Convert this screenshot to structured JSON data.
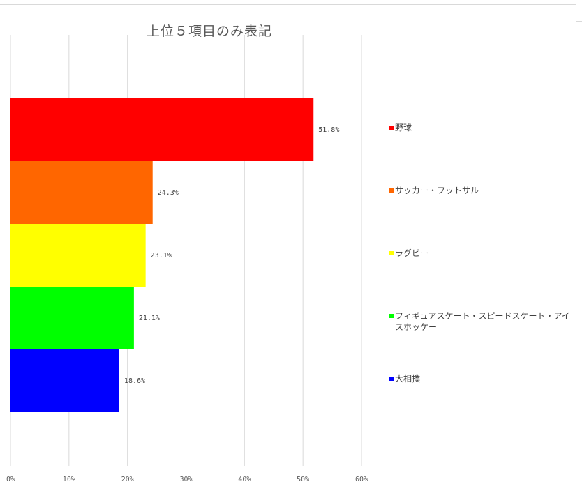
{
  "chart_data": {
    "type": "bar",
    "orientation": "horizontal",
    "title": "上位５項目のみ表記",
    "categories": [
      "野球",
      "サッカー・フットサル",
      "ラグビー",
      "フィギュアスケート・スピードスケート・アイスホッケー",
      "大相撲"
    ],
    "values": [
      51.8,
      24.3,
      23.1,
      21.1,
      18.6
    ],
    "data_labels": [
      "51.8%",
      "24.3%",
      "23.1%",
      "21.1%",
      "18.6%"
    ],
    "colors": [
      "#ff0000",
      "#ff6600",
      "#ffff00",
      "#00ff00",
      "#0000ff"
    ],
    "x_ticks": [
      "0%",
      "10%",
      "20%",
      "30%",
      "40%",
      "50%",
      "60%"
    ],
    "xlim": [
      0,
      60
    ],
    "grid": true,
    "legend_position": "right"
  },
  "legend": {
    "items": [
      {
        "label": "野球",
        "color": "#ff0000"
      },
      {
        "label": "サッカー・フットサル",
        "color": "#ff6600"
      },
      {
        "label": "ラグビー",
        "color": "#ffff00"
      },
      {
        "label": "フィギュアスケート・スピードスケート・アイスホッケー",
        "color": "#00ff00"
      },
      {
        "label": "大相撲",
        "color": "#0000ff"
      }
    ]
  }
}
